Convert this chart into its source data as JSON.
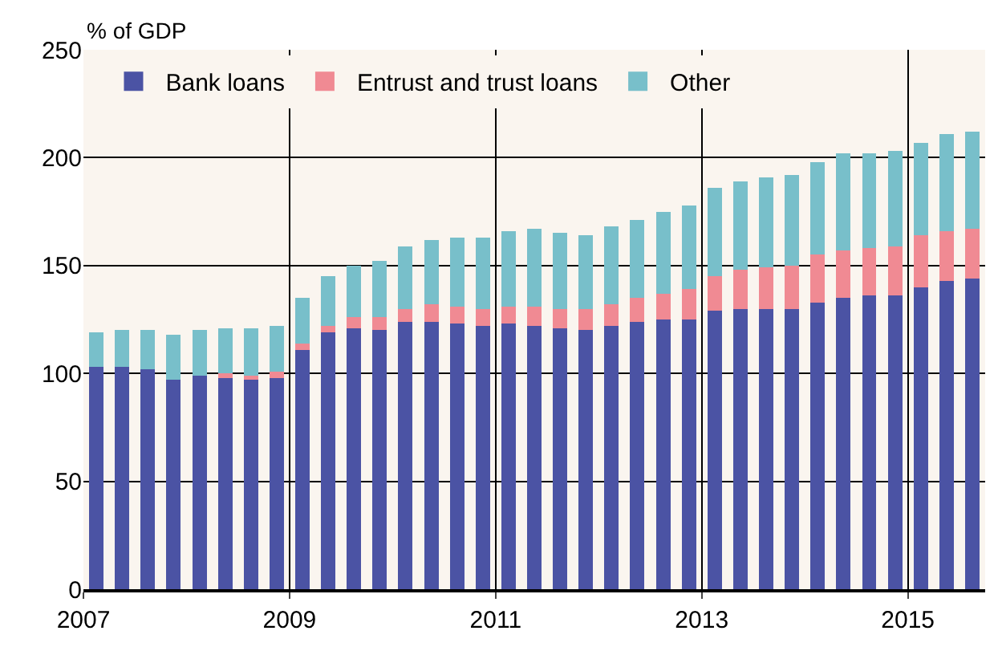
{
  "chart_data": {
    "type": "bar",
    "stacked": true,
    "ylabel": "% of GDP",
    "x": [
      2007.125,
      2007.375,
      2007.625,
      2007.875,
      2008.125,
      2008.375,
      2008.625,
      2008.875,
      2009.125,
      2009.375,
      2009.625,
      2009.875,
      2010.125,
      2010.375,
      2010.625,
      2010.875,
      2011.125,
      2011.375,
      2011.625,
      2011.875,
      2012.125,
      2012.375,
      2012.625,
      2012.875,
      2013.125,
      2013.375,
      2013.625,
      2013.875,
      2014.125,
      2014.375,
      2014.625,
      2014.875,
      2015.125,
      2015.375,
      2015.625
    ],
    "series": [
      {
        "name": "Bank loans",
        "color": "#4b53a4",
        "values": [
          103,
          103,
          102,
          97,
          99,
          98,
          97,
          98,
          111,
          119,
          121,
          120,
          124,
          124,
          123,
          122,
          123,
          122,
          121,
          120,
          122,
          124,
          125,
          125,
          129,
          130,
          130,
          130,
          133,
          135,
          136,
          136,
          140,
          143,
          144
        ]
      },
      {
        "name": "Entrust and trust loans",
        "color": "#f08a93",
        "values": [
          0,
          0,
          0,
          0,
          0,
          2,
          2,
          3,
          3,
          3,
          5,
          6,
          6,
          8,
          8,
          8,
          8,
          9,
          9,
          10,
          10,
          11,
          12,
          14,
          16,
          18,
          19,
          20,
          22,
          22,
          22,
          23,
          24,
          23,
          23
        ]
      },
      {
        "name": "Other",
        "color": "#78bfca",
        "values": [
          16,
          17,
          18,
          21,
          21,
          21,
          22,
          21,
          21,
          23,
          24,
          26,
          29,
          30,
          32,
          33,
          35,
          36,
          35,
          34,
          36,
          36,
          38,
          39,
          41,
          41,
          42,
          42,
          43,
          45,
          44,
          44,
          43,
          45,
          45
        ]
      }
    ],
    "xlim": [
      2007,
      2015.75
    ],
    "xticks": [
      2007,
      2009,
      2011,
      2013,
      2015
    ],
    "ylim": [
      0,
      250
    ],
    "yticks": [
      0,
      50,
      100,
      150,
      200,
      250
    ],
    "grid": true,
    "legend": "top left"
  }
}
